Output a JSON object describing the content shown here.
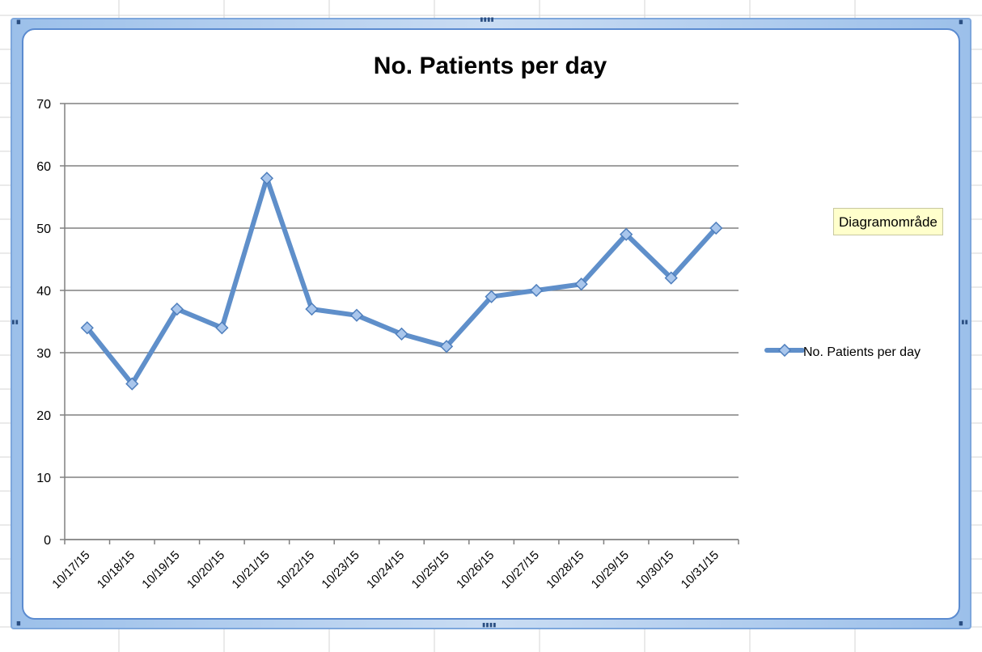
{
  "tooltip": {
    "text": "Diagramområde"
  },
  "colors": {
    "series": "#5f8fca",
    "marker_fill": "#a9c6ec",
    "marker_stroke": "#4f7fbd",
    "gridline": "#808080",
    "frame": "#7ea7dc"
  },
  "chart_data": {
    "type": "line",
    "title": "No. Patients per day",
    "xlabel": "",
    "ylabel": "",
    "categories": [
      "10/17/15",
      "10/18/15",
      "10/19/15",
      "10/20/15",
      "10/21/15",
      "10/22/15",
      "10/23/15",
      "10/24/15",
      "10/25/15",
      "10/26/15",
      "10/27/15",
      "10/28/15",
      "10/29/15",
      "10/30/15",
      "10/31/15"
    ],
    "series": [
      {
        "name": "No. Patients per day",
        "values": [
          34,
          25,
          37,
          34,
          58,
          37,
          36,
          33,
          31,
          39,
          40,
          41,
          49,
          42,
          50
        ],
        "marker": "diamond"
      }
    ],
    "ylim": [
      0,
      70
    ],
    "yticks": [
      0,
      10,
      20,
      30,
      40,
      50,
      60,
      70
    ],
    "grid": true,
    "legend_position": "right"
  }
}
